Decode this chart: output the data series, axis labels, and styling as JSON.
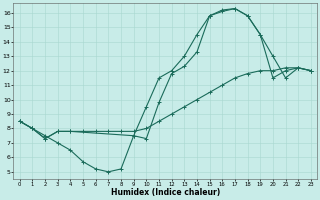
{
  "bg_color": "#c8ece8",
  "grid_color": "#a8d8d0",
  "line_color": "#1a6b5a",
  "xlabel": "Humidex (Indice chaleur)",
  "xlim": [
    -0.5,
    23.5
  ],
  "ylim": [
    4.5,
    16.7
  ],
  "xticks": [
    0,
    1,
    2,
    3,
    4,
    5,
    6,
    7,
    8,
    9,
    10,
    11,
    12,
    13,
    14,
    15,
    16,
    17,
    18,
    19,
    20,
    21,
    22,
    23
  ],
  "yticks": [
    5,
    6,
    7,
    8,
    9,
    10,
    11,
    12,
    13,
    14,
    15,
    16
  ],
  "curve1_x": [
    0,
    1,
    2,
    3,
    4,
    5,
    6,
    7,
    8,
    9,
    10,
    11,
    12,
    13,
    14,
    15,
    16,
    17,
    18,
    19,
    20,
    21,
    22,
    23
  ],
  "curve1_y": [
    8.5,
    8.0,
    7.5,
    7.0,
    6.5,
    5.7,
    5.2,
    5.0,
    5.2,
    7.5,
    9.5,
    11.5,
    12.0,
    13.0,
    14.5,
    15.8,
    16.2,
    16.3,
    15.8,
    14.5,
    11.5,
    12.0,
    12.2,
    12.0
  ],
  "curve2_x": [
    0,
    1,
    2,
    3,
    4,
    9,
    10,
    11,
    12,
    13,
    14,
    15,
    16,
    17,
    18,
    19,
    20,
    21,
    22,
    23
  ],
  "curve2_y": [
    8.5,
    8.0,
    7.3,
    7.8,
    7.8,
    7.5,
    7.3,
    9.8,
    11.8,
    12.3,
    13.3,
    15.8,
    16.1,
    16.3,
    15.8,
    14.5,
    13.0,
    11.5,
    12.2,
    12.0
  ],
  "curve3_x": [
    0,
    1,
    2,
    3,
    4,
    5,
    6,
    7,
    8,
    9,
    10,
    11,
    12,
    13,
    14,
    15,
    16,
    17,
    18,
    19,
    20,
    21,
    22,
    23
  ],
  "curve3_y": [
    8.5,
    8.0,
    7.3,
    7.8,
    7.8,
    7.8,
    7.8,
    7.8,
    7.8,
    7.8,
    8.0,
    8.5,
    9.0,
    9.5,
    10.0,
    10.5,
    11.0,
    11.5,
    11.8,
    12.0,
    12.0,
    12.2,
    12.2,
    12.0
  ]
}
